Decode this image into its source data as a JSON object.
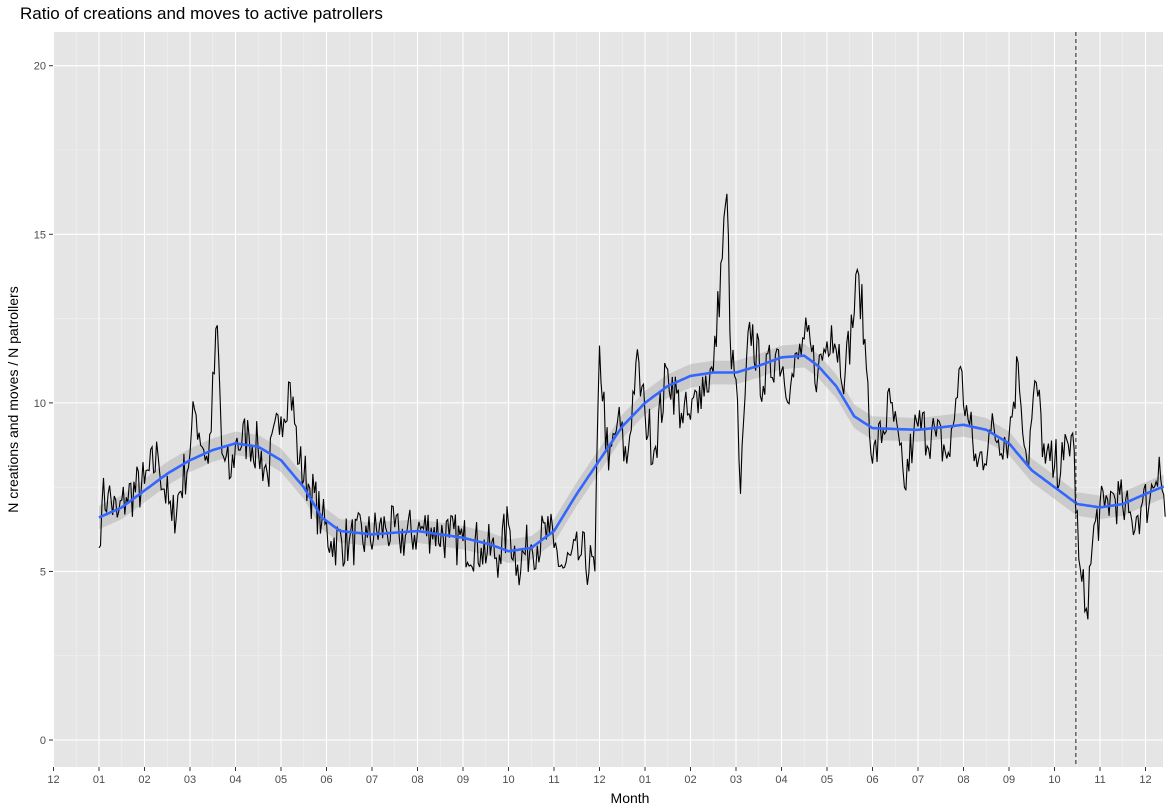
{
  "chart_data": {
    "type": "line",
    "title": "Ratio of creations and moves to active patrollers",
    "xlabel": "Month",
    "ylabel": "N creations and moves / N patrollers",
    "x_tick_labels": [
      "12",
      "01",
      "02",
      "03",
      "04",
      "05",
      "06",
      "07",
      "08",
      "09",
      "10",
      "11",
      "12",
      "01",
      "02",
      "03",
      "04",
      "05",
      "06",
      "07",
      "08",
      "09",
      "10",
      "11",
      "12"
    ],
    "ylim": [
      -0.8,
      21
    ],
    "y_ticks": [
      0,
      5,
      10,
      15,
      20
    ],
    "y_tick_labels": [
      "0",
      "5",
      "10",
      "15",
      "20"
    ],
    "grid": true,
    "vertical_reference_line": {
      "x_month": 21.47,
      "style": "dashed"
    },
    "x_unit": "months since first 01 tick",
    "series": [
      {
        "kind": "daily_ratio",
        "color": "#000000",
        "anchor_points": [
          [
            0.0,
            5.7
          ],
          [
            0.05,
            7.0
          ],
          [
            0.2,
            7.3
          ],
          [
            0.4,
            6.6
          ],
          [
            0.6,
            7.2
          ],
          [
            1.0,
            7.6
          ],
          [
            1.3,
            8.4
          ],
          [
            1.6,
            6.5
          ],
          [
            2.0,
            8.5
          ],
          [
            2.1,
            9.8
          ],
          [
            2.4,
            8.2
          ],
          [
            2.6,
            12.3
          ],
          [
            2.7,
            8.5
          ],
          [
            2.9,
            7.8
          ],
          [
            3.0,
            8.8
          ],
          [
            3.3,
            9.0
          ],
          [
            3.5,
            8.6
          ],
          [
            3.7,
            7.9
          ],
          [
            4.0,
            9.6
          ],
          [
            4.2,
            10.6
          ],
          [
            4.4,
            8.2
          ],
          [
            4.6,
            7.6
          ],
          [
            4.9,
            6.5
          ],
          [
            5.1,
            5.9
          ],
          [
            5.5,
            5.9
          ],
          [
            5.9,
            6.0
          ],
          [
            6.3,
            6.3
          ],
          [
            6.6,
            6.0
          ],
          [
            7.0,
            6.2
          ],
          [
            7.3,
            6.3
          ],
          [
            7.7,
            6.0
          ],
          [
            8.0,
            5.9
          ],
          [
            8.4,
            5.7
          ],
          [
            8.8,
            5.5
          ],
          [
            9.0,
            6.4
          ],
          [
            9.2,
            5.2
          ],
          [
            9.5,
            5.8
          ],
          [
            9.9,
            6.1
          ],
          [
            10.0,
            5.7
          ],
          [
            10.2,
            5.1
          ],
          [
            10.6,
            5.5
          ],
          [
            10.9,
            5.0
          ],
          [
            11.0,
            11.7
          ],
          [
            11.2,
            8.0
          ],
          [
            11.4,
            9.5
          ],
          [
            11.6,
            8.2
          ],
          [
            11.8,
            11.2
          ],
          [
            12.0,
            9.7
          ],
          [
            12.2,
            8.6
          ],
          [
            12.5,
            11.0
          ],
          [
            12.8,
            9.7
          ],
          [
            13.0,
            9.5
          ],
          [
            13.2,
            10.5
          ],
          [
            13.5,
            10.9
          ],
          [
            13.8,
            16.2
          ],
          [
            13.9,
            11.0
          ],
          [
            14.0,
            10.7
          ],
          [
            14.1,
            7.3
          ],
          [
            14.3,
            12.4
          ],
          [
            14.6,
            10.5
          ],
          [
            14.9,
            11.6
          ],
          [
            15.2,
            10.5
          ],
          [
            15.5,
            11.9
          ],
          [
            15.8,
            10.9
          ],
          [
            16.1,
            12.3
          ],
          [
            16.4,
            10.9
          ],
          [
            16.7,
            13.8
          ],
          [
            16.9,
            10.6
          ],
          [
            17.0,
            8.2
          ],
          [
            17.4,
            10.0
          ],
          [
            17.7,
            7.5
          ],
          [
            17.9,
            9.0
          ],
          [
            18.0,
            9.3
          ],
          [
            18.4,
            9.0
          ],
          [
            18.7,
            8.4
          ],
          [
            18.9,
            11.0
          ],
          [
            19.1,
            9.5
          ],
          [
            19.3,
            8.1
          ],
          [
            19.6,
            9.1
          ],
          [
            20.0,
            9.0
          ],
          [
            20.2,
            11.2
          ],
          [
            20.4,
            8.2
          ],
          [
            20.6,
            10.6
          ],
          [
            20.8,
            8.2
          ],
          [
            21.0,
            8.1
          ],
          [
            21.2,
            8.3
          ],
          [
            21.4,
            9.1
          ],
          [
            21.55,
            4.9
          ],
          [
            21.7,
            3.9
          ],
          [
            21.9,
            6.5
          ],
          [
            22.1,
            6.9
          ],
          [
            22.3,
            7.3
          ],
          [
            22.5,
            6.9
          ],
          [
            22.7,
            6.5
          ],
          [
            22.9,
            6.9
          ],
          [
            23.1,
            7.2
          ],
          [
            23.3,
            8.4
          ],
          [
            23.45,
            6.4
          ]
        ]
      },
      {
        "kind": "smoothed_trend",
        "color": "#3366ff",
        "band_color": "#999999",
        "points": [
          [
            0.0,
            6.6
          ],
          [
            0.5,
            6.9
          ],
          [
            1.0,
            7.4
          ],
          [
            1.5,
            7.9
          ],
          [
            2.0,
            8.3
          ],
          [
            2.5,
            8.6
          ],
          [
            3.0,
            8.8
          ],
          [
            3.5,
            8.7
          ],
          [
            4.0,
            8.3
          ],
          [
            4.5,
            7.5
          ],
          [
            4.9,
            6.6
          ],
          [
            5.3,
            6.2
          ],
          [
            6.0,
            6.1
          ],
          [
            7.0,
            6.2
          ],
          [
            8.0,
            6.0
          ],
          [
            8.6,
            5.8
          ],
          [
            9.0,
            5.6
          ],
          [
            9.5,
            5.7
          ],
          [
            10.0,
            6.2
          ],
          [
            10.5,
            7.3
          ],
          [
            11.0,
            8.3
          ],
          [
            11.5,
            9.3
          ],
          [
            12.0,
            10.0
          ],
          [
            12.5,
            10.5
          ],
          [
            13.0,
            10.8
          ],
          [
            13.5,
            10.9
          ],
          [
            14.0,
            10.9
          ],
          [
            14.5,
            11.1
          ],
          [
            15.0,
            11.35
          ],
          [
            15.5,
            11.4
          ],
          [
            15.8,
            11.1
          ],
          [
            16.2,
            10.5
          ],
          [
            16.6,
            9.6
          ],
          [
            17.0,
            9.25
          ],
          [
            18.0,
            9.2
          ],
          [
            19.0,
            9.35
          ],
          [
            19.5,
            9.2
          ],
          [
            20.0,
            8.8
          ],
          [
            20.5,
            8.0
          ],
          [
            21.0,
            7.5
          ],
          [
            21.5,
            7.0
          ],
          [
            22.0,
            6.9
          ],
          [
            22.5,
            7.0
          ],
          [
            23.0,
            7.3
          ],
          [
            23.45,
            7.55
          ]
        ]
      }
    ]
  }
}
